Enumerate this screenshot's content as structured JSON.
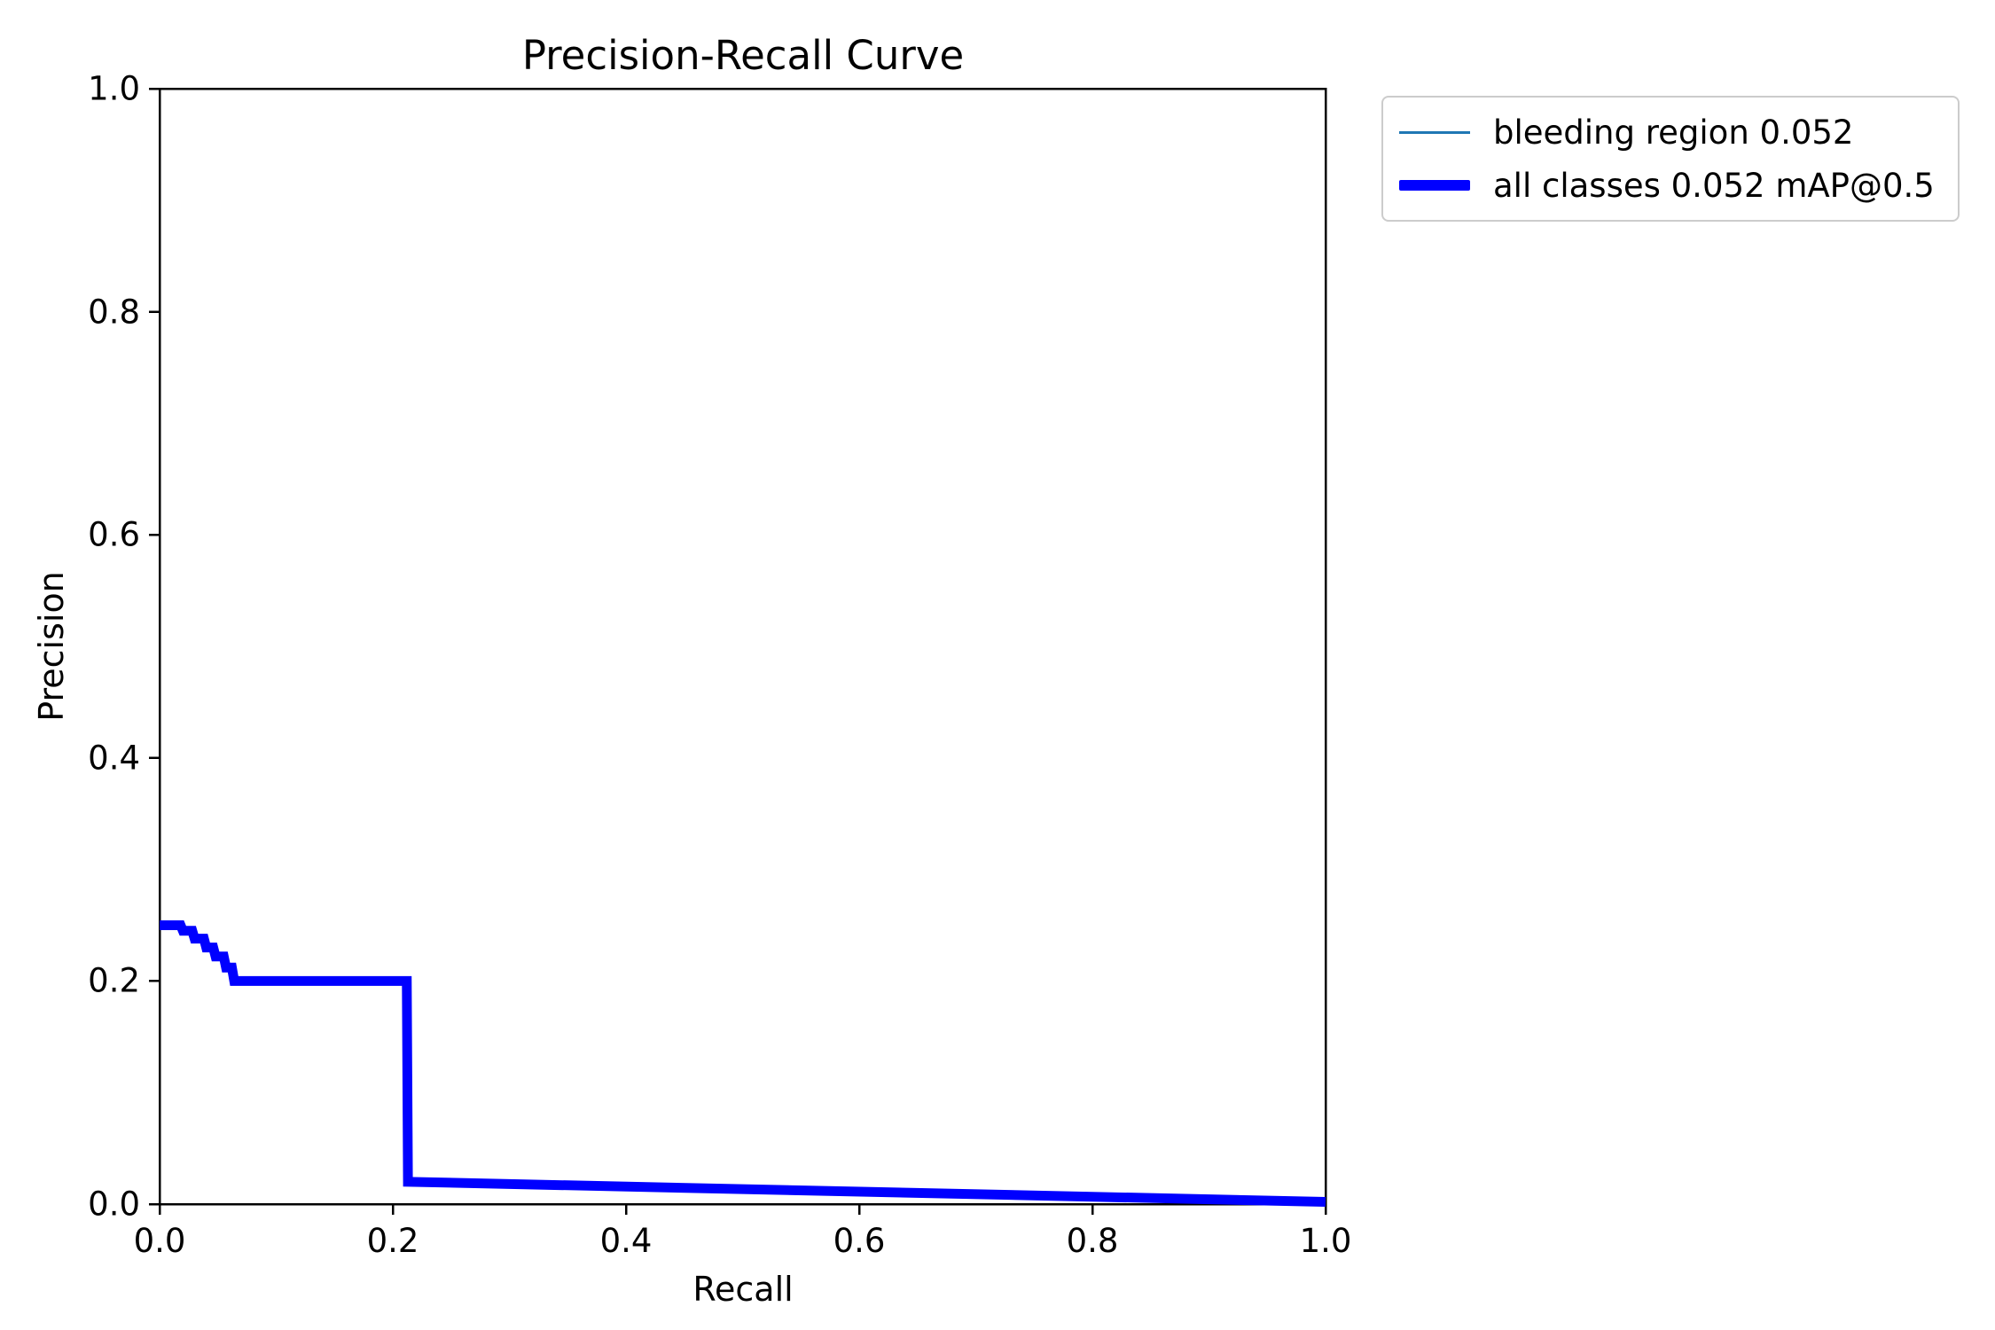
{
  "page": {
    "background_color": "#ffffff"
  },
  "chart_data": {
    "type": "line",
    "title": "Precision-Recall Curve",
    "xlabel": "Recall",
    "ylabel": "Precision",
    "xlim": [
      0.0,
      1.0
    ],
    "ylim": [
      0.0,
      1.0
    ],
    "grid": false,
    "legend_position": "outside upper right",
    "axis_color": "#000000",
    "xticks": {
      "values": [
        0.0,
        0.2,
        0.4,
        0.6,
        0.8,
        1.0
      ],
      "labels": [
        "0.0",
        "0.2",
        "0.4",
        "0.6",
        "0.8",
        "1.0"
      ]
    },
    "yticks": {
      "values": [
        0.0,
        0.2,
        0.4,
        0.6,
        0.8,
        1.0
      ],
      "labels": [
        "0.0",
        "0.2",
        "0.4",
        "0.6",
        "0.8",
        "1.0"
      ]
    },
    "curves": {
      "pr": [
        [
          0.0,
          0.25
        ],
        [
          0.018,
          0.25
        ],
        [
          0.02,
          0.245
        ],
        [
          0.028,
          0.245
        ],
        [
          0.03,
          0.238
        ],
        [
          0.038,
          0.238
        ],
        [
          0.04,
          0.23
        ],
        [
          0.046,
          0.23
        ],
        [
          0.048,
          0.222
        ],
        [
          0.055,
          0.222
        ],
        [
          0.057,
          0.212
        ],
        [
          0.062,
          0.212
        ],
        [
          0.064,
          0.2
        ],
        [
          0.212,
          0.2
        ],
        [
          0.213,
          0.02
        ],
        [
          1.0,
          0.002
        ]
      ]
    },
    "series": [
      {
        "name": "bleeding region 0.052",
        "color": "#1f77b4",
        "line_width": 2.5,
        "points_ref": "pr"
      },
      {
        "name": "all classes 0.052 mAP@0.5",
        "color": "#0000ff",
        "line_width": 11,
        "points_ref": "pr"
      }
    ]
  }
}
